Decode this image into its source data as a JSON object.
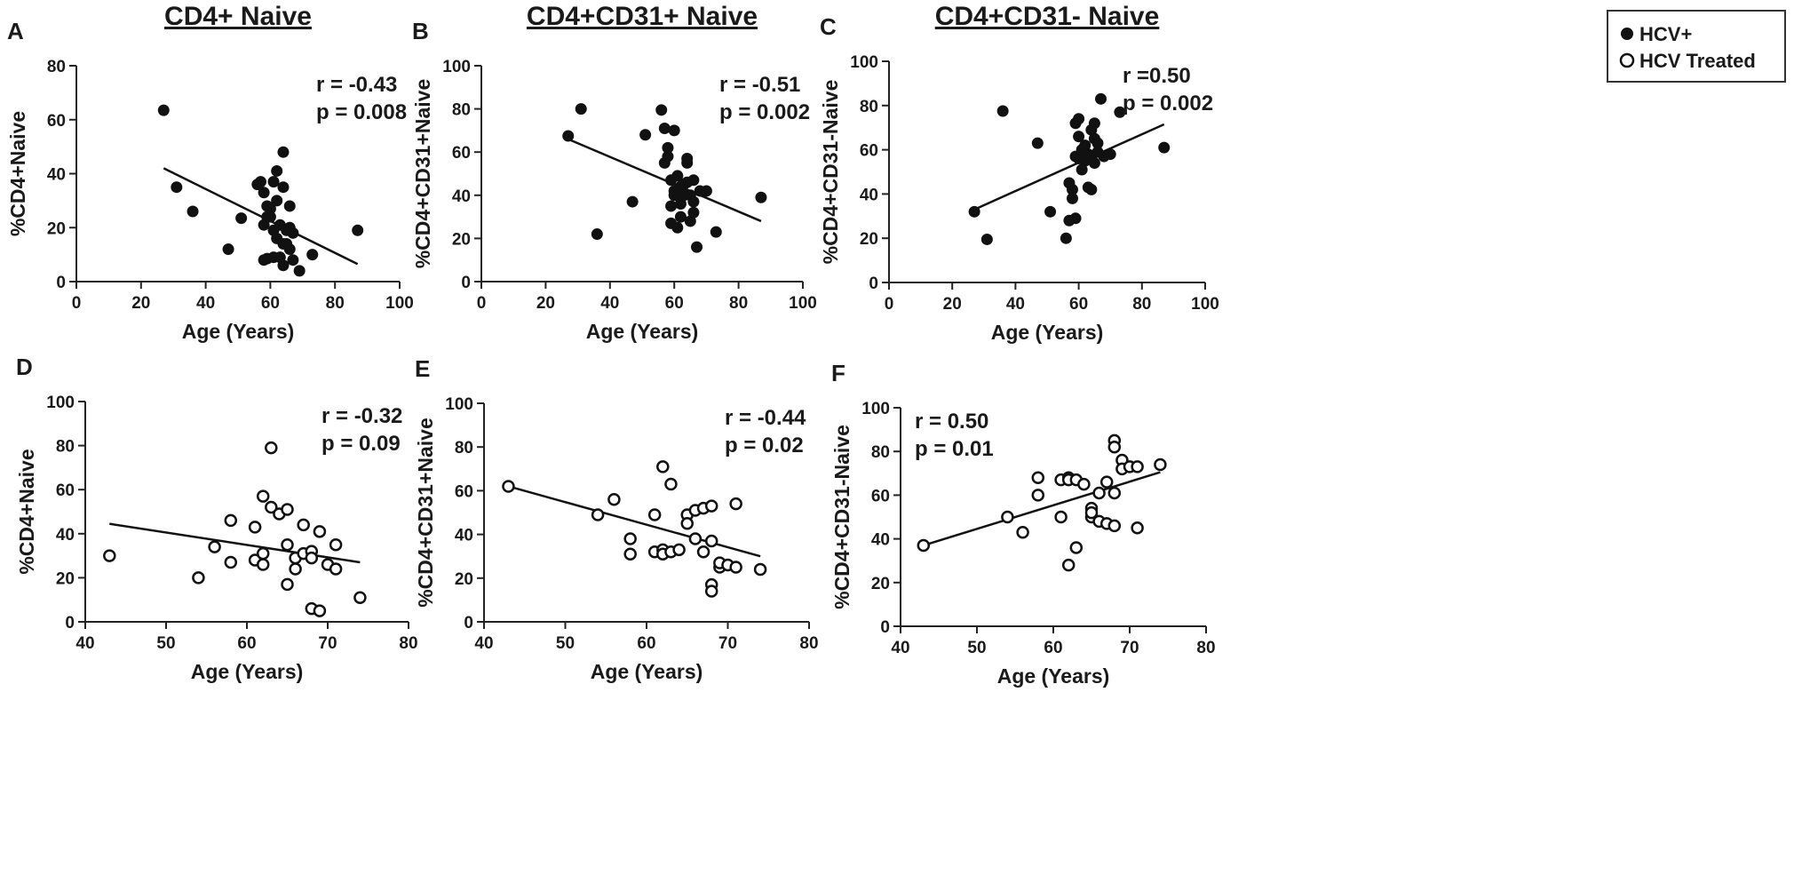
{
  "legend": {
    "entries": [
      {
        "label": "HCV+",
        "marker": "filled"
      },
      {
        "label": "HCV Treated",
        "marker": "open"
      }
    ]
  },
  "chart_data": [
    {
      "panel": "A",
      "type": "scatter",
      "title": "CD4+ Naive",
      "xlabel": "Age (Years)",
      "ylabel": "%CD4+Naive",
      "xlim": [
        0,
        100
      ],
      "ylim": [
        0,
        80
      ],
      "xticks": [
        0,
        20,
        40,
        60,
        80,
        100
      ],
      "yticks": [
        0,
        20,
        40,
        60,
        80
      ],
      "marker": "filled",
      "stat_r": "r = -0.43",
      "stat_p": "p = 0.008",
      "fit": {
        "x": [
          27,
          87
        ],
        "y": [
          42,
          6.5
        ]
      },
      "points": [
        [
          27,
          63.5
        ],
        [
          31,
          35
        ],
        [
          36,
          26
        ],
        [
          47,
          12
        ],
        [
          51,
          23.5
        ],
        [
          56,
          36
        ],
        [
          57,
          37
        ],
        [
          58,
          8
        ],
        [
          58,
          33
        ],
        [
          58,
          21
        ],
        [
          59,
          24
        ],
        [
          59,
          28
        ],
        [
          59,
          8.5
        ],
        [
          60,
          24
        ],
        [
          60,
          27
        ],
        [
          61,
          37
        ],
        [
          61,
          9
        ],
        [
          61,
          19
        ],
        [
          62,
          41
        ],
        [
          62,
          30
        ],
        [
          62,
          16
        ],
        [
          63,
          21
        ],
        [
          63,
          9
        ],
        [
          64,
          48
        ],
        [
          64,
          35
        ],
        [
          64,
          14
        ],
        [
          64,
          6
        ],
        [
          65,
          19
        ],
        [
          65,
          14
        ],
        [
          66,
          20
        ],
        [
          66,
          12
        ],
        [
          66,
          28
        ],
        [
          67,
          8
        ],
        [
          67,
          18
        ],
        [
          69,
          4
        ],
        [
          73,
          10
        ],
        [
          87,
          19
        ]
      ]
    },
    {
      "panel": "B",
      "type": "scatter",
      "title": "CD4+CD31+ Naive",
      "xlabel": "Age (Years)",
      "ylabel": "%CD4+CD31+Naive",
      "xlim": [
        0,
        100
      ],
      "ylim": [
        0,
        100
      ],
      "xticks": [
        0,
        20,
        40,
        60,
        80,
        100
      ],
      "yticks": [
        0,
        20,
        40,
        60,
        80,
        100
      ],
      "marker": "filled",
      "stat_r": "r = -0.51",
      "stat_p": "p = 0.002",
      "fit": {
        "x": [
          27,
          87
        ],
        "y": [
          66,
          28
        ]
      },
      "points": [
        [
          27,
          67.5
        ],
        [
          31,
          80
        ],
        [
          36,
          22
        ],
        [
          47,
          37
        ],
        [
          51,
          68
        ],
        [
          56,
          79.5
        ],
        [
          57,
          55
        ],
        [
          57,
          71
        ],
        [
          58,
          58
        ],
        [
          58,
          62
        ],
        [
          59,
          47
        ],
        [
          59,
          35
        ],
        [
          59,
          27
        ],
        [
          60,
          70
        ],
        [
          60,
          42
        ],
        [
          60,
          40
        ],
        [
          61,
          49
        ],
        [
          61,
          25
        ],
        [
          62,
          44
        ],
        [
          62,
          30
        ],
        [
          62,
          36
        ],
        [
          63,
          45
        ],
        [
          63,
          40
        ],
        [
          64,
          57
        ],
        [
          64,
          55
        ],
        [
          64,
          46
        ],
        [
          65,
          40
        ],
        [
          65,
          28
        ],
        [
          66,
          47
        ],
        [
          66,
          32
        ],
        [
          66,
          37
        ],
        [
          67,
          16
        ],
        [
          68,
          42
        ],
        [
          70,
          42
        ],
        [
          73,
          23
        ],
        [
          87,
          39
        ]
      ]
    },
    {
      "panel": "C",
      "type": "scatter",
      "title": "CD4+CD31- Naive",
      "xlabel": "Age (Years)",
      "ylabel": "%CD4+CD31-Naive",
      "xlim": [
        0,
        100
      ],
      "ylim": [
        0,
        100
      ],
      "xticks": [
        0,
        20,
        40,
        60,
        80,
        100
      ],
      "yticks": [
        0,
        20,
        40,
        60,
        80,
        100
      ],
      "marker": "filled",
      "stat_r": "r =0.50",
      "stat_p": "p = 0.002",
      "fit": {
        "x": [
          27,
          87
        ],
        "y": [
          33,
          71.5
        ]
      },
      "points": [
        [
          27,
          32
        ],
        [
          31,
          19.5
        ],
        [
          36,
          77.5
        ],
        [
          47,
          63
        ],
        [
          51,
          32
        ],
        [
          56,
          20
        ],
        [
          57,
          45
        ],
        [
          57,
          28
        ],
        [
          58,
          42
        ],
        [
          58,
          38
        ],
        [
          59,
          72
        ],
        [
          59,
          29
        ],
        [
          59,
          57
        ],
        [
          60,
          74
        ],
        [
          60,
          66
        ],
        [
          60,
          56
        ],
        [
          61,
          51
        ],
        [
          61,
          60
        ],
        [
          62,
          55
        ],
        [
          62,
          62
        ],
        [
          63,
          58
        ],
        [
          63,
          43
        ],
        [
          64,
          69
        ],
        [
          64,
          42
        ],
        [
          64,
          57
        ],
        [
          65,
          72
        ],
        [
          65,
          54
        ],
        [
          65,
          65
        ],
        [
          66,
          63
        ],
        [
          66,
          59
        ],
        [
          67,
          83
        ],
        [
          68,
          57
        ],
        [
          70,
          58
        ],
        [
          73,
          77
        ],
        [
          87,
          61
        ]
      ]
    },
    {
      "panel": "D",
      "type": "scatter",
      "title": "",
      "xlabel": "Age (Years)",
      "ylabel": "%CD4+Naive",
      "xlim": [
        40,
        80
      ],
      "ylim": [
        0,
        100
      ],
      "xticks": [
        40,
        50,
        60,
        70,
        80
      ],
      "yticks": [
        0,
        20,
        40,
        60,
        80,
        100
      ],
      "marker": "open",
      "stat_r": "r = -0.32",
      "stat_p": "p = 0.09",
      "fit": {
        "x": [
          43,
          74
        ],
        "y": [
          44.5,
          27
        ]
      },
      "points": [
        [
          43,
          30
        ],
        [
          54,
          20
        ],
        [
          56,
          34
        ],
        [
          58,
          46
        ],
        [
          58,
          27
        ],
        [
          61,
          43
        ],
        [
          61,
          28
        ],
        [
          62,
          57
        ],
        [
          62,
          31
        ],
        [
          62,
          26
        ],
        [
          63,
          79
        ],
        [
          63,
          52
        ],
        [
          64,
          49
        ],
        [
          65,
          51
        ],
        [
          65,
          35
        ],
        [
          65,
          17
        ],
        [
          66,
          24
        ],
        [
          66,
          29
        ],
        [
          67,
          44
        ],
        [
          67,
          31
        ],
        [
          68,
          32
        ],
        [
          68,
          6
        ],
        [
          68,
          29
        ],
        [
          69,
          41
        ],
        [
          69,
          5
        ],
        [
          70,
          26
        ],
        [
          71,
          35
        ],
        [
          71,
          24
        ],
        [
          74,
          11
        ]
      ]
    },
    {
      "panel": "E",
      "type": "scatter",
      "title": "",
      "xlabel": "Age (Years)",
      "ylabel": "%CD4+CD31+Naive",
      "xlim": [
        40,
        80
      ],
      "ylim": [
        0,
        100
      ],
      "xticks": [
        40,
        50,
        60,
        70,
        80
      ],
      "yticks": [
        0,
        20,
        40,
        60,
        80,
        100
      ],
      "marker": "open",
      "stat_r": "r = -0.44",
      "stat_p": "p = 0.02",
      "fit": {
        "x": [
          43,
          74
        ],
        "y": [
          62,
          30
        ]
      },
      "points": [
        [
          43,
          62
        ],
        [
          54,
          49
        ],
        [
          56,
          56
        ],
        [
          58,
          38
        ],
        [
          58,
          31
        ],
        [
          61,
          49
        ],
        [
          61,
          32
        ],
        [
          62,
          71
        ],
        [
          62,
          33
        ],
        [
          62,
          31
        ],
        [
          63,
          63
        ],
        [
          63,
          32
        ],
        [
          64,
          33
        ],
        [
          65,
          49
        ],
        [
          65,
          45
        ],
        [
          66,
          38
        ],
        [
          66,
          51
        ],
        [
          67,
          52
        ],
        [
          67,
          32
        ],
        [
          68,
          53
        ],
        [
          68,
          37
        ],
        [
          68,
          17
        ],
        [
          68,
          14
        ],
        [
          69,
          25
        ],
        [
          69,
          27
        ],
        [
          70,
          26
        ],
        [
          71,
          54
        ],
        [
          71,
          25
        ],
        [
          74,
          24
        ]
      ]
    },
    {
      "panel": "F",
      "type": "scatter",
      "title": "",
      "xlabel": "Age (Years)",
      "ylabel": "%CD4+CD31-Naive",
      "xlim": [
        40,
        80
      ],
      "ylim": [
        0,
        100
      ],
      "xticks": [
        40,
        50,
        60,
        70,
        80
      ],
      "yticks": [
        0,
        20,
        40,
        60,
        80,
        100
      ],
      "marker": "open",
      "stat_r": "r = 0.50",
      "stat_p": "p = 0.01",
      "fit": {
        "x": [
          43,
          74
        ],
        "y": [
          37,
          70.5
        ]
      },
      "points": [
        [
          43,
          37
        ],
        [
          54,
          50
        ],
        [
          56,
          43
        ],
        [
          58,
          68
        ],
        [
          58,
          60
        ],
        [
          61,
          67
        ],
        [
          61,
          50
        ],
        [
          62,
          68
        ],
        [
          62,
          67
        ],
        [
          62,
          28
        ],
        [
          63,
          67
        ],
        [
          63,
          36
        ],
        [
          64,
          65
        ],
        [
          65,
          54
        ],
        [
          65,
          50
        ],
        [
          65,
          52
        ],
        [
          66,
          61
        ],
        [
          66,
          48
        ],
        [
          67,
          66
        ],
        [
          67,
          47
        ],
        [
          68,
          85
        ],
        [
          68,
          82
        ],
        [
          68,
          61
        ],
        [
          68,
          46
        ],
        [
          69,
          76
        ],
        [
          69,
          72
        ],
        [
          70,
          73
        ],
        [
          71,
          73
        ],
        [
          71,
          45
        ],
        [
          74,
          74
        ]
      ]
    }
  ]
}
